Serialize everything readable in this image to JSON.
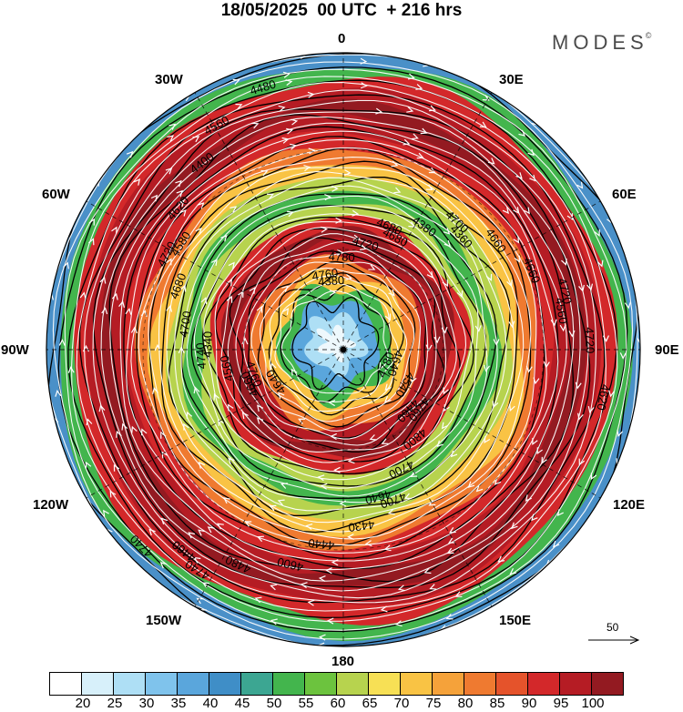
{
  "header": {
    "title": "18/05/2025  00 UTC  + 216 hrs",
    "brand": "MODES",
    "brand_mark": "©"
  },
  "longitude_labels": {
    "n": "0",
    "ne": "30E",
    "nne": "60E",
    "e": "90E",
    "ese": "120E",
    "se": "150E",
    "s": "180",
    "sw": "150W",
    "wsw": "120W",
    "w": "90W",
    "wnw": "60W",
    "nw": "30W"
  },
  "contour_labels": [
    "4780",
    "4760",
    "4680",
    "4640",
    "4580",
    "4560",
    "4460",
    "4380",
    "4460",
    "4340",
    "4360",
    "4440",
    "4400",
    "4620",
    "4640",
    "4720",
    "4700",
    "4680",
    "4660",
    "4480",
    "4480",
    "4540",
    "4560",
    "4380",
    "4430",
    "4620",
    "4720",
    "4740",
    "4780",
    "4800",
    "4700",
    "4660",
    "4600",
    "4560",
    "4640",
    "4660",
    "4680",
    "4700",
    "4720",
    "4720",
    "4740",
    "4760",
    "4760",
    "4740",
    "4700"
  ],
  "reference_vector": {
    "label": "50"
  },
  "colorbar": {
    "colors": [
      "#ffffff",
      "#d7f0fa",
      "#aedff5",
      "#7fc3ec",
      "#5aa6dc",
      "#3f8ec7",
      "#3ca692",
      "#43b54d",
      "#6cc33e",
      "#b7d34e",
      "#f7e055",
      "#f9c344",
      "#f5a23a",
      "#ef7a30",
      "#e5532b",
      "#d3282a",
      "#b51c24",
      "#931a21"
    ],
    "labels": [
      "20",
      "25",
      "30",
      "35",
      "40",
      "45",
      "50",
      "55",
      "60",
      "65",
      "70",
      "75",
      "80",
      "85",
      "90",
      "95",
      "100"
    ]
  },
  "palette": {
    "ring_bands": [
      "#4a90c8",
      "#43b54d",
      "#d3282a",
      "#b51c24",
      "#931a21",
      "#b51c24",
      "#d3282a",
      "#ef7a30",
      "#f9c344",
      "#b7d34e",
      "#43b54d",
      "#b7d34e",
      "#d3282a",
      "#931a21",
      "#b51c24",
      "#ef7a30",
      "#f9c344",
      "#43b54d",
      "#5aa6dc",
      "#aedff5",
      "#eef8fc"
    ]
  }
}
